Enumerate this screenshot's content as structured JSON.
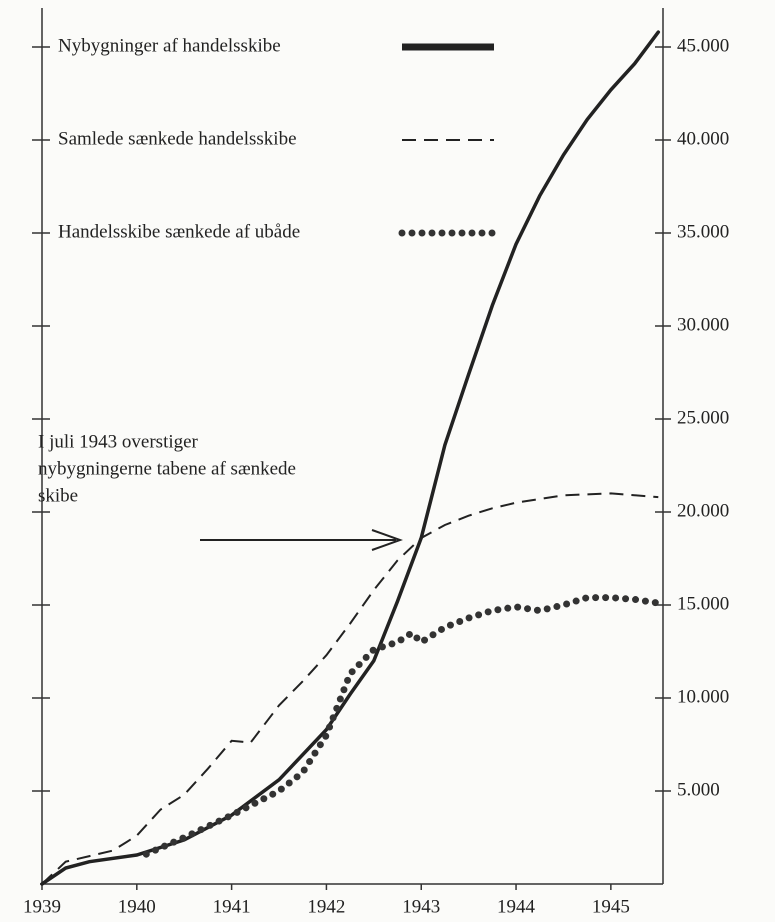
{
  "chart_data": {
    "type": "line",
    "xlim": [
      1939,
      1945.55
    ],
    "xticks": [
      1939,
      1940,
      1941,
      1942,
      1943,
      1944,
      1945
    ],
    "ylim": [
      0,
      45000
    ],
    "yticks": [
      {
        "value": 5000,
        "label": "5.000"
      },
      {
        "value": 10000,
        "label": "10.000"
      },
      {
        "value": 15000,
        "label": "15.000"
      },
      {
        "value": 20000,
        "label": "20.000"
      },
      {
        "value": 25000,
        "label": "25.000"
      },
      {
        "value": 30000,
        "label": "30.000"
      },
      {
        "value": 35000,
        "label": "35.000"
      },
      {
        "value": 40000,
        "label": "40.000"
      },
      {
        "value": 45000,
        "label": "45.000"
      }
    ],
    "legend": "upper left",
    "series": [
      {
        "name": "Nybygninger af handelsskibe",
        "style": "solid",
        "color": "#222222",
        "x": [
          1939,
          1939.25,
          1939.5,
          1940,
          1940.5,
          1941,
          1941.5,
          1942,
          1942.25,
          1942.5,
          1942.75,
          1943,
          1943.25,
          1943.5,
          1943.75,
          1944,
          1944.25,
          1944.5,
          1944.75,
          1945,
          1945.25,
          1945.5
        ],
        "values": [
          0,
          860,
          1200,
          1560,
          2370,
          3700,
          5600,
          8300,
          10200,
          12000,
          15200,
          18600,
          23600,
          27400,
          31100,
          34400,
          37000,
          39200,
          41100,
          42700,
          44100,
          45800
        ]
      },
      {
        "name": "Samlede sænkede handelsskibe",
        "style": "dashed",
        "color": "#222222",
        "x": [
          1939,
          1939.25,
          1939.5,
          1939.75,
          1940,
          1940.25,
          1940.5,
          1940.75,
          1941,
          1941.2,
          1941.5,
          1941.75,
          1942,
          1942.25,
          1942.5,
          1942.75,
          1943,
          1943.25,
          1943.5,
          1943.75,
          1944,
          1944.5,
          1945,
          1945.5
        ],
        "values": [
          0,
          1200,
          1500,
          1800,
          2600,
          4000,
          4800,
          6200,
          7700,
          7600,
          9600,
          10900,
          12300,
          14000,
          15800,
          17400,
          18600,
          19300,
          19800,
          20200,
          20500,
          20900,
          21000,
          20800
        ]
      },
      {
        "name": "Handelsskibe sænkede af ubåde",
        "style": "dotted",
        "color": "#333333",
        "x": [
          1940.1,
          1940.5,
          1941,
          1941.5,
          1941.75,
          1942,
          1942.25,
          1942.5,
          1942.75,
          1942.9,
          1943,
          1943.25,
          1943.5,
          1943.75,
          1944,
          1944.25,
          1944.5,
          1944.75,
          1945,
          1945.25,
          1945.5
        ],
        "values": [
          1600,
          2500,
          3700,
          5000,
          6000,
          8000,
          11300,
          12600,
          13000,
          13500,
          13000,
          13800,
          14300,
          14700,
          14900,
          14700,
          15000,
          15400,
          15400,
          15300,
          15100
        ]
      }
    ],
    "annotation": [
      "I juli 1943 overstiger",
      "nybygningerne tabene af sænkede",
      "skibe"
    ]
  }
}
